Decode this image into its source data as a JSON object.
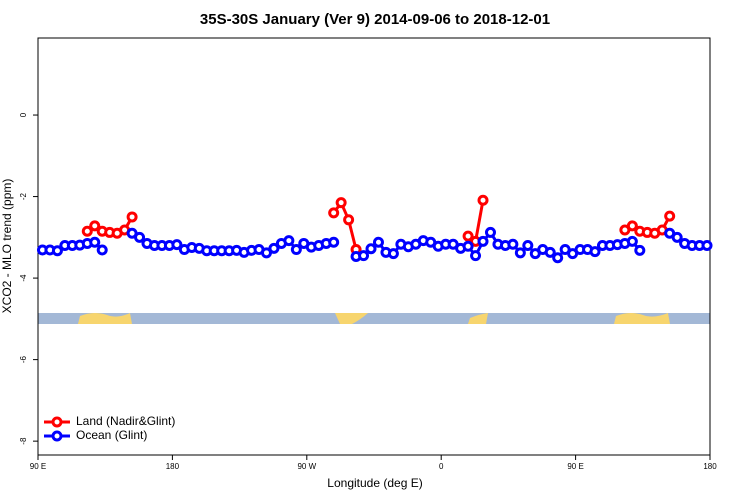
{
  "chart_data": {
    "type": "line",
    "title": "35S-30S January (Ver 9)   2014-09-06 to 2018-12-01",
    "xlabel": "Longitude (deg E)",
    "ylabel": "XCO2 - MLO trend (ppm)",
    "xlim": [
      90,
      540
    ],
    "ylim": [
      -8.34,
      1.89
    ],
    "xticks": [
      {
        "value": 90,
        "label": "90 E"
      },
      180,
      {
        "value": 270,
        "label": "90 W"
      },
      {
        "value": 360,
        "label": "0"
      },
      {
        "value": 450,
        "label": "90 E"
      },
      {
        "value": 540,
        "label": "180"
      }
    ],
    "yticks": [
      0,
      -2,
      -4,
      -6,
      -8
    ],
    "legend": "bottom-left",
    "series": [
      {
        "name": "Land (Nadir&Glint)",
        "color": "#ff0000",
        "x": [
          123,
          128,
          133,
          138,
          143,
          148,
          153,
          null,
          288,
          293,
          298,
          303,
          null,
          378,
          383,
          388,
          null,
          483,
          488,
          493,
          498,
          503,
          508,
          513
        ],
        "values": [
          -2.85,
          -2.72,
          -2.85,
          -2.88,
          -2.9,
          -2.82,
          -2.5,
          null,
          -2.4,
          -2.15,
          -2.57,
          -3.3,
          null,
          -2.97,
          -3.1,
          -2.09,
          null,
          -2.82,
          -2.72,
          -2.85,
          -2.88,
          -2.9,
          -2.82,
          -2.48
        ]
      },
      {
        "name": "Ocean (Glint)",
        "color": "#0000ff",
        "x": [
          93,
          98,
          103,
          108,
          113,
          118,
          123,
          128,
          133,
          138,
          143,
          148,
          153,
          158,
          163,
          168,
          173,
          178,
          183,
          188,
          193,
          198,
          203,
          208,
          213,
          218,
          223,
          228,
          233,
          238,
          243,
          248,
          253,
          258,
          263,
          268,
          273,
          278,
          283,
          288,
          293,
          298,
          303,
          308,
          313,
          318,
          323,
          328,
          333,
          338,
          343,
          348,
          353,
          358,
          363,
          368,
          373,
          378,
          383,
          388,
          393,
          398,
          403,
          408,
          413,
          418,
          423,
          428,
          433,
          438,
          443,
          448,
          453,
          458,
          463,
          468,
          473,
          478,
          483,
          488,
          493,
          498,
          503,
          508,
          513,
          518,
          523,
          528,
          533,
          538
        ],
        "values": [
          -3.31,
          -3.31,
          -3.33,
          -3.2,
          -3.2,
          -3.19,
          -3.15,
          -3.12,
          -3.31,
          null,
          null,
          null,
          -2.9,
          -3.0,
          -3.15,
          -3.2,
          -3.2,
          -3.2,
          -3.18,
          -3.3,
          -3.25,
          -3.27,
          -3.33,
          -3.33,
          -3.33,
          -3.33,
          -3.32,
          -3.37,
          -3.32,
          -3.3,
          -3.38,
          -3.27,
          -3.15,
          -3.08,
          -3.3,
          -3.15,
          -3.24,
          -3.2,
          -3.15,
          -3.12,
          null,
          null,
          -3.47,
          -3.45,
          -3.28,
          -3.12,
          -3.37,
          -3.4,
          -3.17,
          -3.23,
          -3.17,
          -3.08,
          -3.12,
          -3.22,
          -3.17,
          -3.17,
          -3.27,
          -3.22,
          -3.45,
          -3.1,
          -2.88,
          -3.17,
          -3.2,
          -3.17,
          -3.38,
          -3.2,
          -3.4,
          -3.3,
          -3.37,
          -3.5,
          -3.3,
          -3.4,
          -3.3,
          -3.3,
          -3.35,
          -3.2,
          -3.2,
          -3.18,
          -3.15,
          -3.1,
          -3.32,
          null,
          null,
          null,
          -2.9,
          -3.0,
          -3.15,
          -3.2,
          -3.2,
          -3.2
        ]
      }
    ]
  }
}
